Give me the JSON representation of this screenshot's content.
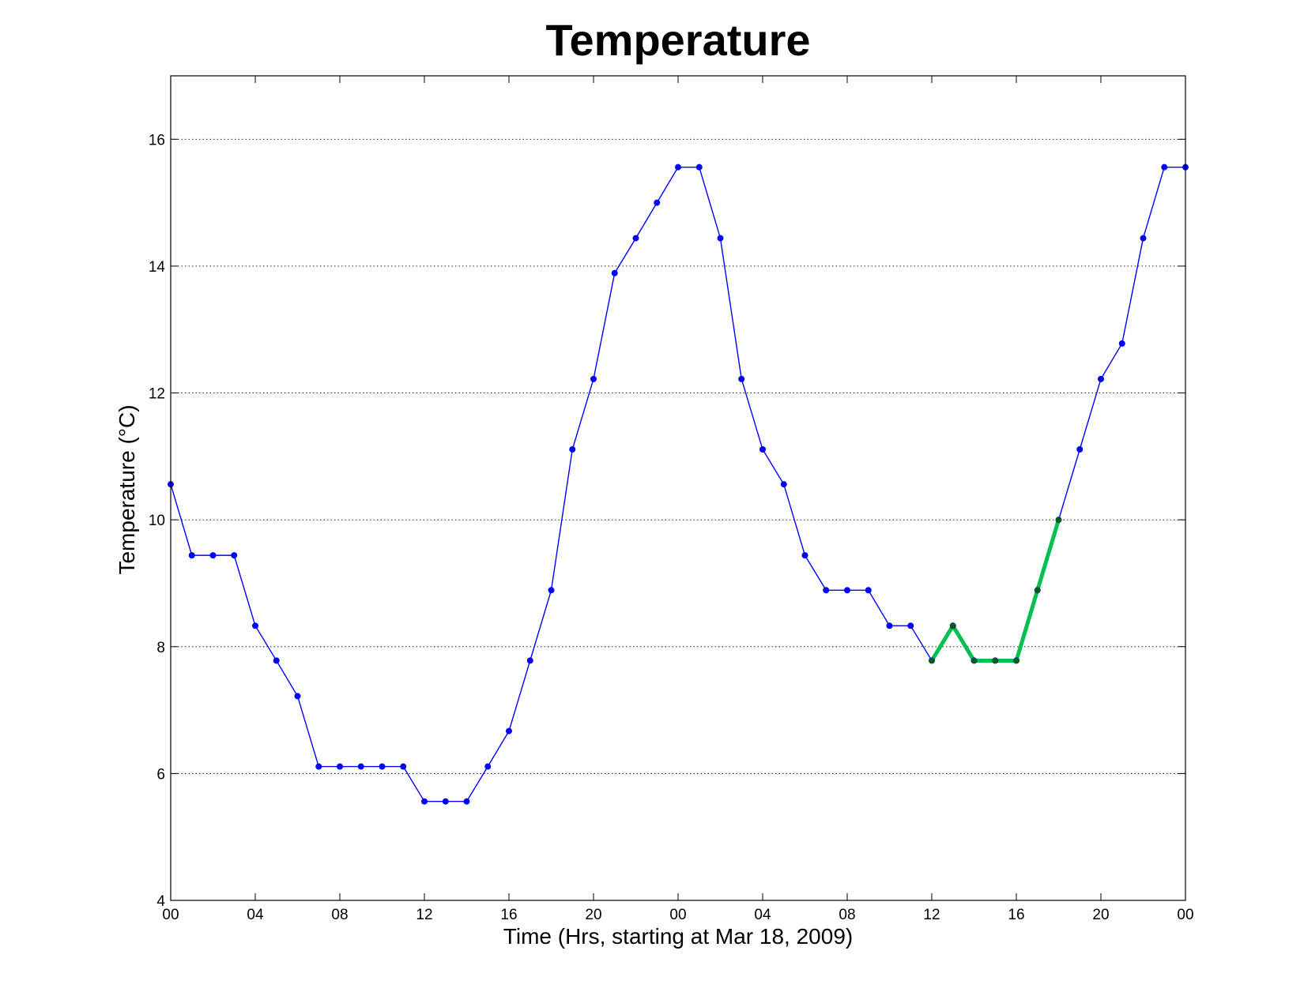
{
  "chart_data": {
    "type": "line",
    "title": "Temperature",
    "xlabel": "Time (Hrs, starting at Mar 18, 2009)",
    "ylabel": "Temperature (°C)",
    "xlim": [
      0,
      48
    ],
    "ylim": [
      4,
      17
    ],
    "grid": "horizontal-dotted",
    "x_ticks": [
      {
        "value": 0,
        "label": "00"
      },
      {
        "value": 4,
        "label": "04"
      },
      {
        "value": 8,
        "label": "08"
      },
      {
        "value": 12,
        "label": "12"
      },
      {
        "value": 16,
        "label": "16"
      },
      {
        "value": 20,
        "label": "20"
      },
      {
        "value": 24,
        "label": "00"
      },
      {
        "value": 28,
        "label": "04"
      },
      {
        "value": 32,
        "label": "08"
      },
      {
        "value": 36,
        "label": "12"
      },
      {
        "value": 40,
        "label": "16"
      },
      {
        "value": 44,
        "label": "20"
      },
      {
        "value": 48,
        "label": "00"
      }
    ],
    "y_ticks": [
      {
        "value": 4,
        "label": "4"
      },
      {
        "value": 6,
        "label": "6"
      },
      {
        "value": 8,
        "label": "8"
      },
      {
        "value": 10,
        "label": "10"
      },
      {
        "value": 12,
        "label": "12"
      },
      {
        "value": 14,
        "label": "14"
      },
      {
        "value": 16,
        "label": "16"
      }
    ],
    "series": [
      {
        "color": "#0000ff",
        "line_style": "thin-with-dot-markers",
        "x": [
          0,
          1,
          2,
          3,
          4,
          5,
          6,
          7,
          8,
          9,
          10,
          11,
          12,
          13,
          14,
          15,
          16,
          17,
          18,
          19,
          20,
          21,
          22,
          23,
          24,
          25,
          26,
          27,
          28,
          29,
          30,
          31,
          32,
          33,
          34,
          35,
          36,
          37,
          38,
          39,
          40,
          41,
          42,
          43,
          44,
          45,
          46,
          47,
          48
        ],
        "values": [
          10.56,
          9.44,
          9.44,
          9.44,
          8.33,
          7.78,
          7.22,
          6.11,
          6.11,
          6.11,
          6.11,
          6.11,
          5.56,
          5.56,
          5.56,
          6.11,
          6.67,
          7.78,
          8.89,
          11.11,
          12.22,
          13.89,
          14.44,
          15.0,
          15.56,
          15.56,
          14.44,
          12.22,
          11.11,
          10.56,
          9.44,
          8.89,
          8.89,
          8.89,
          8.33,
          8.33,
          7.78,
          8.33,
          7.78,
          7.78,
          7.78,
          8.89,
          10.0,
          11.11,
          12.22,
          12.78,
          14.44,
          15.56,
          15.56
        ]
      },
      {
        "color": "#00c050",
        "marker_color": "#006000",
        "line_style": "thick-with-dot-markers",
        "x": [
          36,
          37,
          38,
          39,
          40,
          41,
          42
        ],
        "values": [
          7.78,
          8.33,
          7.78,
          7.78,
          7.78,
          8.89,
          10.0
        ]
      }
    ]
  }
}
